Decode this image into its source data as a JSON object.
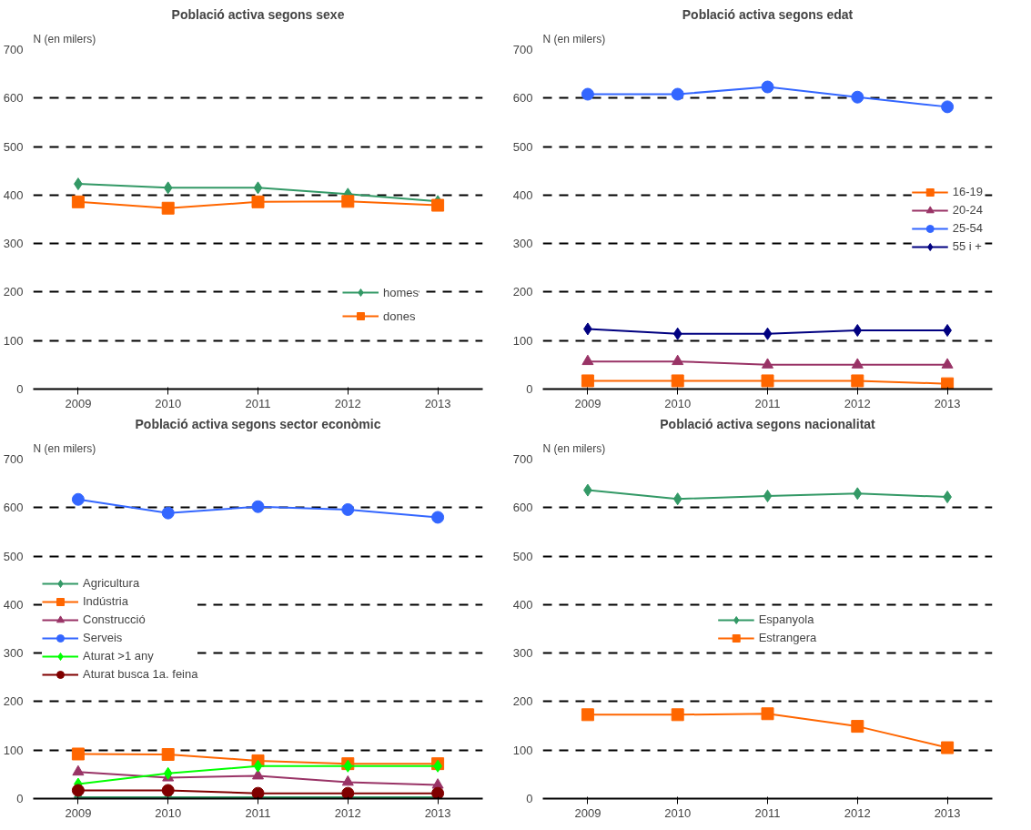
{
  "chart_data": [
    {
      "type": "line",
      "title": "Població activa segons sexe",
      "ylabel": "N (en milers)",
      "categories": [
        "2009",
        "2010",
        "2011",
        "2012",
        "2013"
      ],
      "ylim": [
        0,
        700
      ],
      "yticks": [
        0,
        100,
        200,
        300,
        400,
        500,
        600,
        700
      ],
      "grid": "y",
      "legend": "bottom right",
      "series": [
        {
          "name": "homes",
          "color": "#339966",
          "marker": "diamond",
          "values": [
            423,
            415,
            415,
            402,
            387
          ]
        },
        {
          "name": "dones",
          "color": "#ff6600",
          "marker": "square",
          "values": [
            386,
            373,
            386,
            387,
            379
          ]
        }
      ]
    },
    {
      "type": "line",
      "title": "Població activa segons edat",
      "ylabel": "N (en milers)",
      "categories": [
        "2009",
        "2010",
        "2011",
        "2012",
        "2013"
      ],
      "ylim": [
        0,
        700
      ],
      "yticks": [
        0,
        100,
        200,
        300,
        400,
        500,
        600,
        700
      ],
      "grid": "y",
      "legend": "right",
      "series": [
        {
          "name": "16-19",
          "color": "#ff6600",
          "marker": "square",
          "values": [
            17,
            17,
            17,
            17,
            11
          ]
        },
        {
          "name": "20-24",
          "color": "#993366",
          "marker": "triangle",
          "values": [
            57,
            57,
            50,
            50,
            50
          ]
        },
        {
          "name": "25-54",
          "color": "#3366ff",
          "marker": "circle",
          "values": [
            608,
            608,
            623,
            602,
            582
          ]
        },
        {
          "name": "55 i +",
          "color": "#000080",
          "marker": "diamond",
          "values": [
            124,
            114,
            114,
            121,
            121
          ]
        }
      ]
    },
    {
      "type": "line",
      "title": "Població activa segons sector econòmic",
      "ylabel": "N (en milers)",
      "categories": [
        "2009",
        "2010",
        "2011",
        "2012",
        "2013"
      ],
      "ylim": [
        0,
        700
      ],
      "yticks": [
        0,
        100,
        200,
        300,
        400,
        500,
        600,
        700
      ],
      "grid": "y",
      "legend": "left",
      "series": [
        {
          "name": "Agricultura",
          "color": "#339966",
          "marker": "diamond",
          "values": [
            3,
            3,
            3,
            3,
            3
          ]
        },
        {
          "name": "Indústria",
          "color": "#ff6600",
          "marker": "square",
          "values": [
            92,
            91,
            78,
            72,
            72
          ]
        },
        {
          "name": "Construcció",
          "color": "#993366",
          "marker": "triangle",
          "values": [
            55,
            43,
            47,
            34,
            28
          ]
        },
        {
          "name": "Serveis",
          "color": "#3366ff",
          "marker": "circle",
          "values": [
            617,
            589,
            602,
            596,
            580
          ]
        },
        {
          "name": "Aturat >1 any",
          "color": "#00ff00",
          "marker": "diamond",
          "values": [
            30,
            52,
            67,
            67,
            67
          ]
        },
        {
          "name": "Aturat busca 1a. feina",
          "color": "#800000",
          "marker": "circle",
          "values": [
            17,
            17,
            11,
            11,
            11
          ]
        }
      ]
    },
    {
      "type": "line",
      "title": "Població activa segons nacionalitat",
      "ylabel": "N (en milers)",
      "categories": [
        "2009",
        "2010",
        "2011",
        "2012",
        "2013"
      ],
      "ylim": [
        0,
        700
      ],
      "yticks": [
        0,
        100,
        200,
        300,
        400,
        500,
        600,
        700
      ],
      "grid": "y",
      "legend": "center",
      "series": [
        {
          "name": "Espanyola",
          "color": "#339966",
          "marker": "diamond",
          "values": [
            636,
            618,
            624,
            629,
            622
          ]
        },
        {
          "name": "Estrangera",
          "color": "#ff6600",
          "marker": "square",
          "values": [
            173,
            173,
            175,
            149,
            105
          ]
        }
      ]
    }
  ]
}
